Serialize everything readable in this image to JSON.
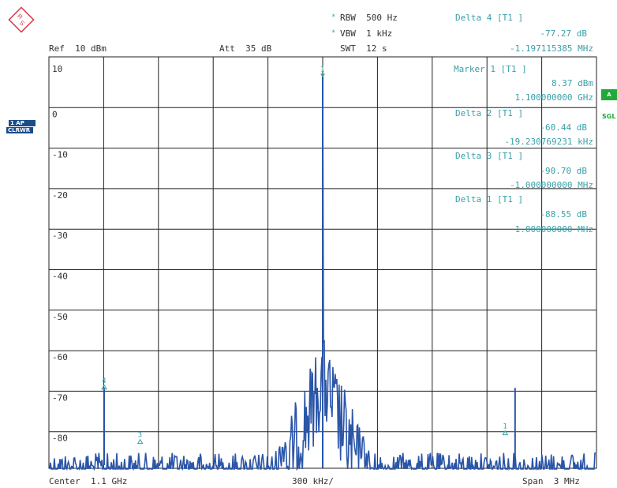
{
  "header": {
    "ref": "Ref  10 dBm",
    "att": "Att  35 dB",
    "rbw": "RBW  500 Hz",
    "vbw": "VBW  1 kHz",
    "swt": "SWT  12 s",
    "rbw_star": "*",
    "vbw_star": "*"
  },
  "side": {
    "tag_1ap": "1 AP",
    "tag_clrwr": "CLRWR",
    "tag_a": "A",
    "sgl": "SGL"
  },
  "markers_panel": [
    {
      "name": "Delta 4 [T1 ]",
      "value": "-77.27 dB",
      "pos": "-1.197115385 MHz"
    },
    {
      "name": "Marker 1 [T1 ]",
      "value": "8.37 dBm",
      "pos": "1.100000000 GHz"
    },
    {
      "name": "Delta 2 [T1 ]",
      "value": "-60.44 dB",
      "pos": "-19.230769231 kHz"
    },
    {
      "name": "Delta 3 [T1 ]",
      "value": "-90.70 dB",
      "pos": "-1.000000000 MHz"
    },
    {
      "name": "Delta 1 [T1 ]",
      "value": "-88.55 dB",
      "pos": "1.000000000 MHz"
    }
  ],
  "footer": {
    "center": "Center  1.1 GHz",
    "div": "300 kHz/",
    "span": "Span  3 MHz"
  },
  "colors": {
    "trace": "#2a55a8",
    "marker": "#3aa0a8",
    "grid": "#222222",
    "tag_blue": "#1a4c8c",
    "tag_green": "#1faa3a",
    "logo": "#d63a4a"
  },
  "logo": {
    "icon": "rohde-schwarz-logo",
    "text": "R&S"
  },
  "chart_data": {
    "type": "line",
    "xlabel": "",
    "ylabel": "",
    "x_center_hz": 1100000000,
    "x_span_hz": 3000000,
    "xlim": [
      1098500000,
      1101500000
    ],
    "ylim": [
      -90,
      10
    ],
    "yticks": [
      10,
      0,
      -10,
      -20,
      -30,
      -40,
      -50,
      -60,
      -70,
      -80
    ],
    "ytick_labels": [
      "10",
      "0",
      "-10",
      "-20",
      "-30",
      "-40",
      "-50",
      "-60",
      "-70",
      "-80"
    ],
    "grid": true,
    "series": [
      {
        "noise_floor_dbm": -85,
        "peaks": [
          {
            "x_hz": 1100000000,
            "y_dbm": 8.37
          },
          {
            "x_hz": 1098802885,
            "y_dbm": -68.9
          },
          {
            "x_hz": 1101054000,
            "y_dbm": -69
          }
        ]
      }
    ],
    "markers": [
      {
        "label": "1",
        "x_hz": 1100000000,
        "y_dbm": 8.37
      },
      {
        "label": "4",
        "x_hz": 1098802885,
        "y_dbm": -68.9
      },
      {
        "label": "3",
        "x_hz": 1099000000,
        "y_dbm": -82.33
      },
      {
        "label": "1",
        "x_hz": 1101000000,
        "y_dbm": -80.18
      }
    ]
  }
}
